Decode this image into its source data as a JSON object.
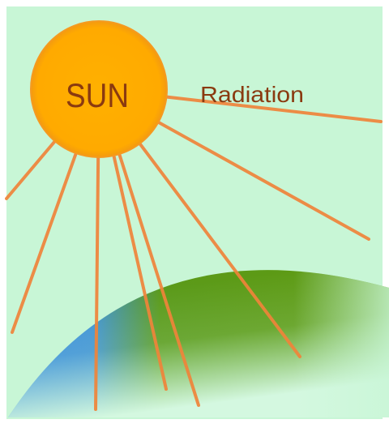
{
  "labels": {
    "sun": "SUN",
    "radiation": "Radiation"
  }
}
